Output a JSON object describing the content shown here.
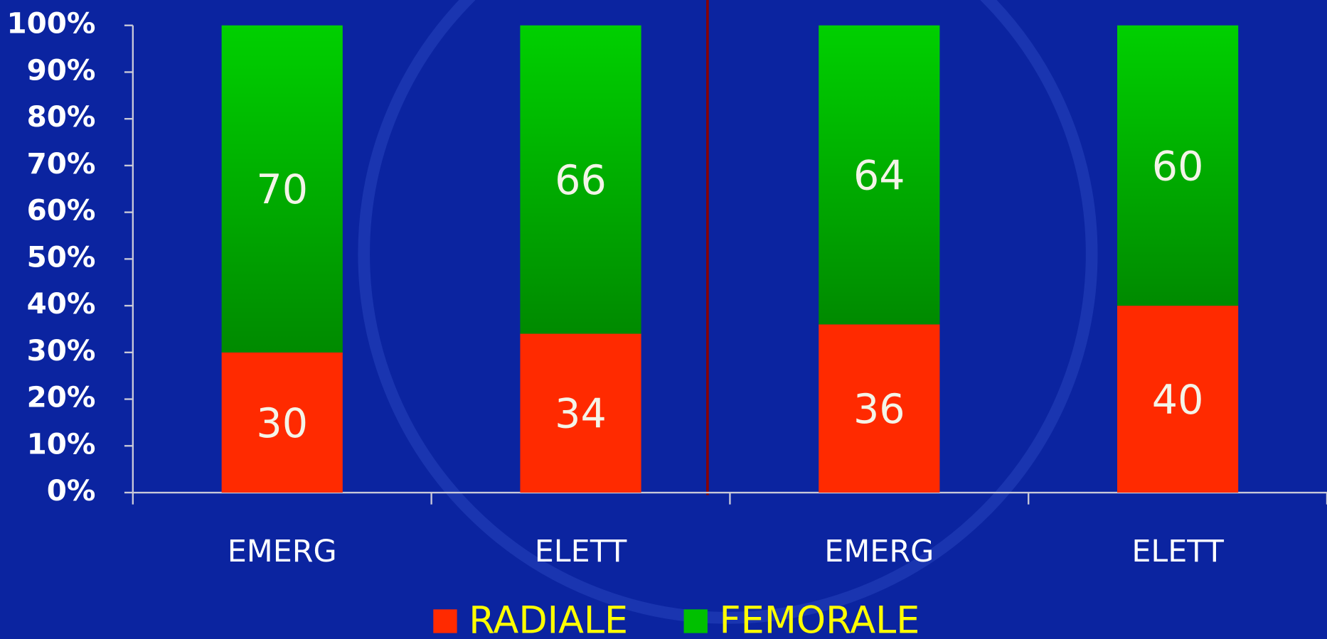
{
  "chart_data": {
    "type": "stacked_bar",
    "categories": [
      "EMERG",
      "ELETT",
      "EMERG",
      "ELETT"
    ],
    "series": [
      {
        "name": "RADIALE",
        "color": "#ff2a00",
        "values": [
          30,
          34,
          36,
          40
        ]
      },
      {
        "name": "FEMORALE",
        "color": "#00c000",
        "values": [
          70,
          66,
          64,
          60
        ]
      }
    ],
    "ylim": [
      0,
      100
    ],
    "yticks": [
      {
        "value": 0,
        "label": "0%"
      },
      {
        "value": 10,
        "label": "10%"
      },
      {
        "value": 20,
        "label": "20%"
      },
      {
        "value": 30,
        "label": "30%"
      },
      {
        "value": 40,
        "label": "40%"
      },
      {
        "value": 50,
        "label": "50%"
      },
      {
        "value": 60,
        "label": "60%"
      },
      {
        "value": 70,
        "label": "70%"
      },
      {
        "value": 80,
        "label": "80%"
      },
      {
        "value": 90,
        "label": "90%"
      },
      {
        "value": 100,
        "label": "100%"
      }
    ],
    "legend": "bottom"
  }
}
